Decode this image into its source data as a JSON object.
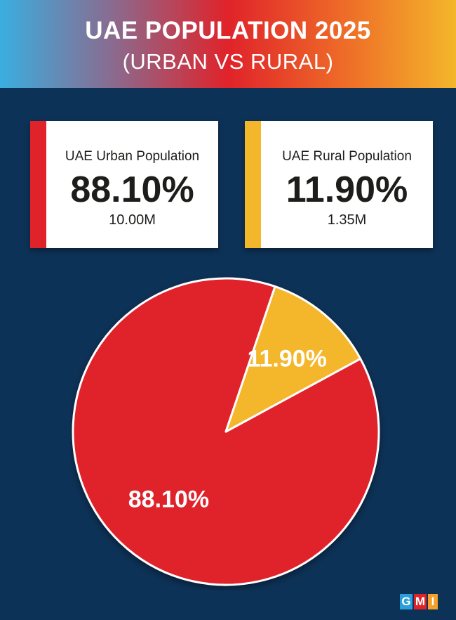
{
  "header": {
    "title": "UAE POPULATION 2025",
    "subtitle": "(URBAN VS RURAL)"
  },
  "cards": {
    "urban": {
      "label": "UAE Urban Population",
      "value": "88.10%",
      "count": "10.00M",
      "color": "#e0232a"
    },
    "rural": {
      "label": "UAE Rural Population",
      "value": "11.90%",
      "count": "1.35M",
      "color": "#f4b62a"
    }
  },
  "chart_data": {
    "type": "pie",
    "title": "UAE POPULATION 2025",
    "subtitle": "(URBAN VS RURAL)",
    "slices": [
      {
        "value": 88.1,
        "label": "88.10%",
        "color": "#e0232a"
      },
      {
        "value": 11.9,
        "label": "11.90%",
        "color": "#f4b62a"
      }
    ]
  },
  "logo": {
    "letters": [
      "G",
      "M",
      "I"
    ]
  }
}
